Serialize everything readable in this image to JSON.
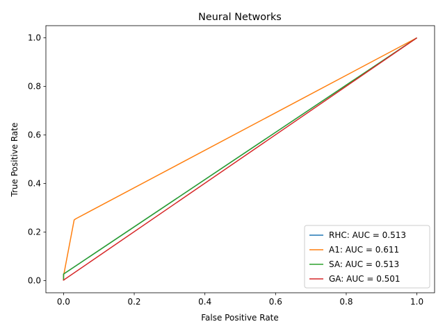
{
  "chart_data": {
    "type": "line",
    "title": "Neural Networks",
    "xlabel": "False Positive Rate",
    "ylabel": "True Positive Rate",
    "xlim": [
      -0.05,
      1.05
    ],
    "ylim": [
      -0.05,
      1.05
    ],
    "xticks": [
      0.0,
      0.2,
      0.4,
      0.6,
      0.8,
      1.0
    ],
    "yticks": [
      0.0,
      0.2,
      0.4,
      0.6,
      0.8,
      1.0
    ],
    "tick_labels_x": [
      "0.0",
      "0.2",
      "0.4",
      "0.6",
      "0.8",
      "1.0"
    ],
    "tick_labels_y": [
      "0.0",
      "0.2",
      "0.4",
      "0.6",
      "0.8",
      "1.0"
    ],
    "grid": false,
    "legend_position": "lower-right",
    "series": [
      {
        "name": "RHC: AUC = 0.513",
        "color": "#1f77b4",
        "x": [
          0.0,
          0.0,
          1.0
        ],
        "y": [
          0.0,
          0.027,
          1.0
        ]
      },
      {
        "name": "A1: AUC = 0.611",
        "color": "#ff7f0e",
        "x": [
          0.0,
          0.0,
          0.03,
          0.035,
          1.0
        ],
        "y": [
          0.0,
          0.02,
          0.25,
          0.255,
          1.0
        ]
      },
      {
        "name": "SA: AUC = 0.513",
        "color": "#2ca02c",
        "x": [
          0.0,
          0.0,
          1.0
        ],
        "y": [
          0.0,
          0.027,
          1.0
        ]
      },
      {
        "name": "GA: AUC = 0.501",
        "color": "#d62728",
        "x": [
          0.0,
          0.0,
          1.0
        ],
        "y": [
          0.0,
          0.002,
          1.0
        ]
      }
    ]
  }
}
